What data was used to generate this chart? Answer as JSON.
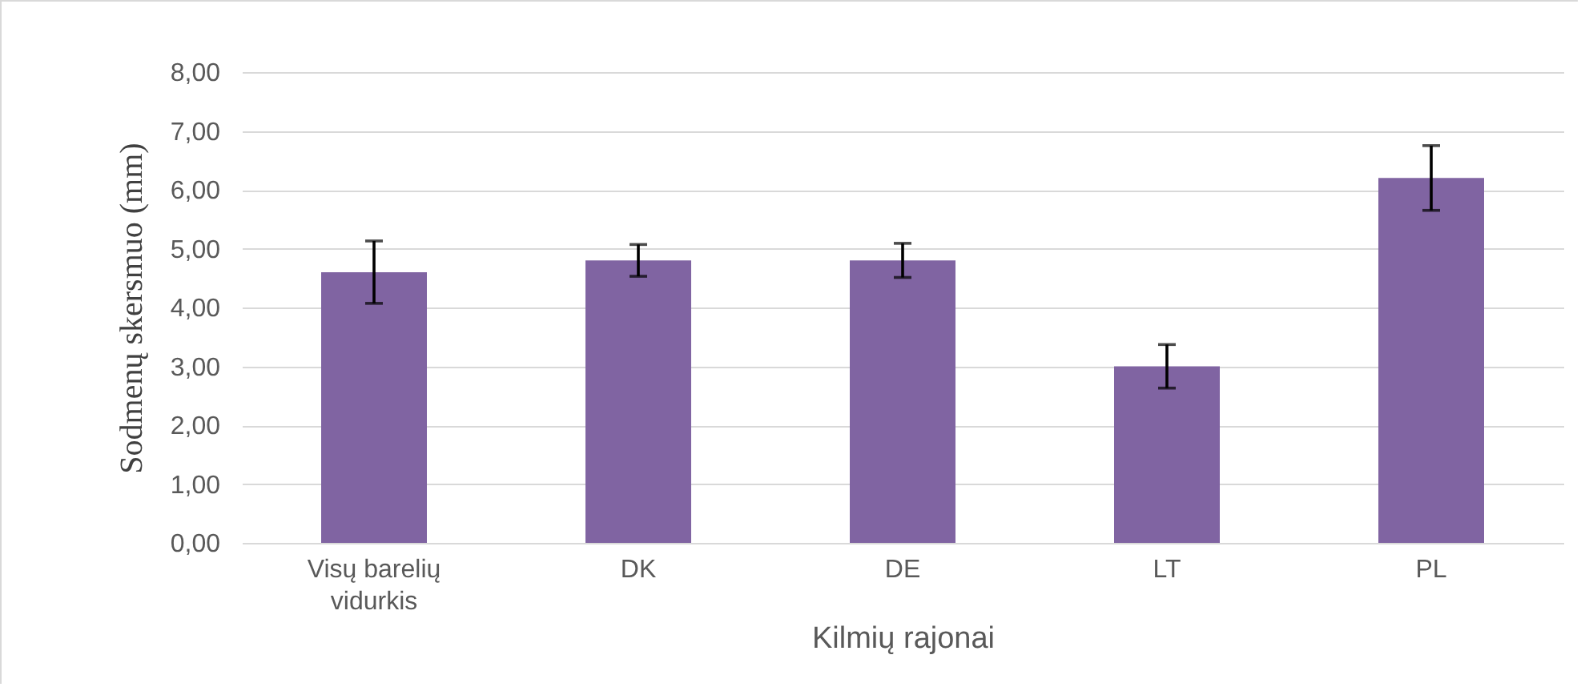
{
  "chart_data": {
    "type": "bar",
    "xlabel": "Kilmių rajonai",
    "ylabel": "Sodmenų skersmuo (mm)",
    "categories": [
      "Visų barelių vidurkis",
      "DK",
      "DE",
      "LT",
      "PL"
    ],
    "values": [
      4.6,
      4.8,
      4.8,
      3.0,
      6.2
    ],
    "errors": [
      0.53,
      0.27,
      0.29,
      0.37,
      0.55
    ],
    "color": "#8064a2",
    "ylim": [
      0,
      8
    ],
    "yticks": [
      {
        "value": 0,
        "label": "0,00"
      },
      {
        "value": 1,
        "label": "1,00"
      },
      {
        "value": 2,
        "label": "2,00"
      },
      {
        "value": 3,
        "label": "3,00"
      },
      {
        "value": 4,
        "label": "4,00"
      },
      {
        "value": 5,
        "label": "5,00"
      },
      {
        "value": 6,
        "label": "6,00"
      },
      {
        "value": 7,
        "label": "7,00"
      },
      {
        "value": 8,
        "label": "8,00"
      }
    ],
    "grid": "y"
  }
}
